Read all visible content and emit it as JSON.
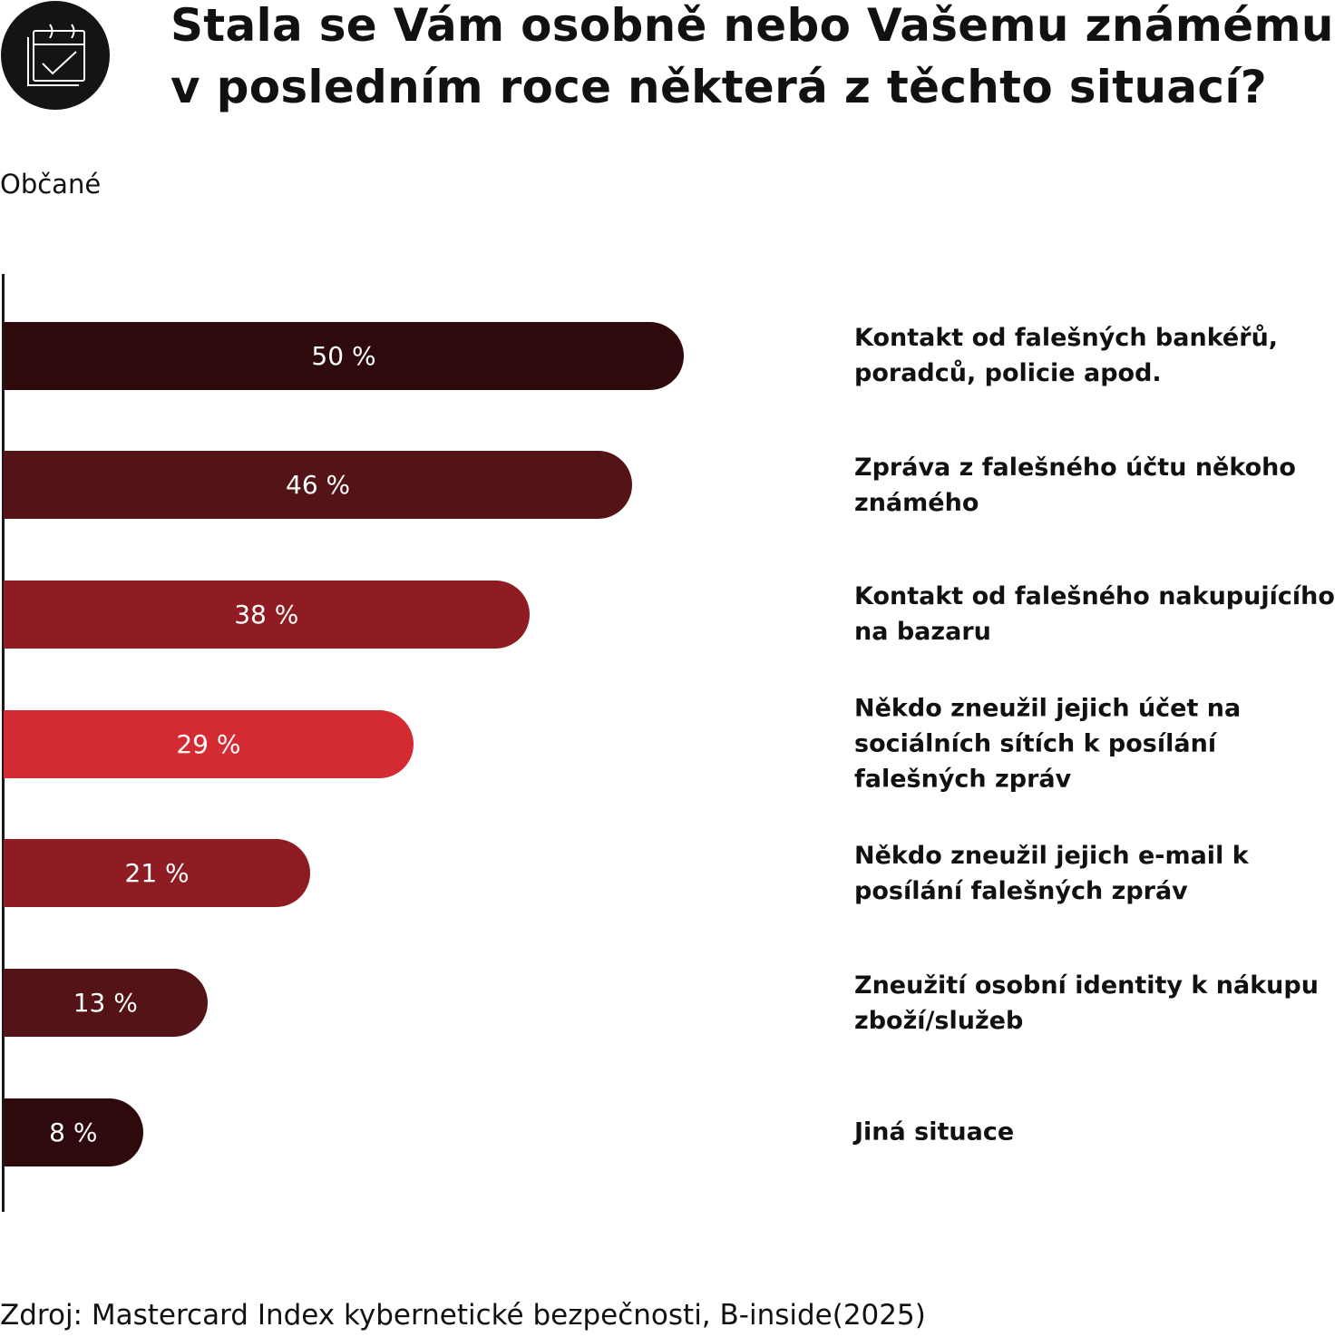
{
  "title": "Stala se Vám osobně nebo Vašemu známému v posledním roce některá z těchto situací?",
  "icon": "calendar-check-icon",
  "chart_data": {
    "type": "bar",
    "orientation": "horizontal",
    "subtitle": "Občané",
    "categories": [
      "Kontakt od falešných bankéřů, poradců, policie apod.",
      "Zpráva z falešného účtu někoho známého",
      "Kontakt od falešného nakupujícího na bazaru",
      "Někdo zneužil jejich účet na sociálních sítích k posílání falešných zpráv",
      "Někdo zneužil jejich e-mail k posílání falešných zpráv",
      "Zneužití osobní identity k nákupu zboží/služeb",
      "Jiná situace"
    ],
    "values": [
      50,
      46,
      38,
      29,
      21,
      13,
      8
    ],
    "value_labels": [
      "50 %",
      "46 %",
      "38 %",
      "29 %",
      "21 %",
      "13 %",
      "8 %"
    ],
    "colors": [
      "#2e0a0d",
      "#541316",
      "#8f1c22",
      "#d42a31",
      "#8f1c22",
      "#541316",
      "#2e0a0d"
    ],
    "unit": "%",
    "grid": false
  },
  "source": "Zdroj: Mastercard Index kybernetické bezpečnosti, B-inside(2025)"
}
